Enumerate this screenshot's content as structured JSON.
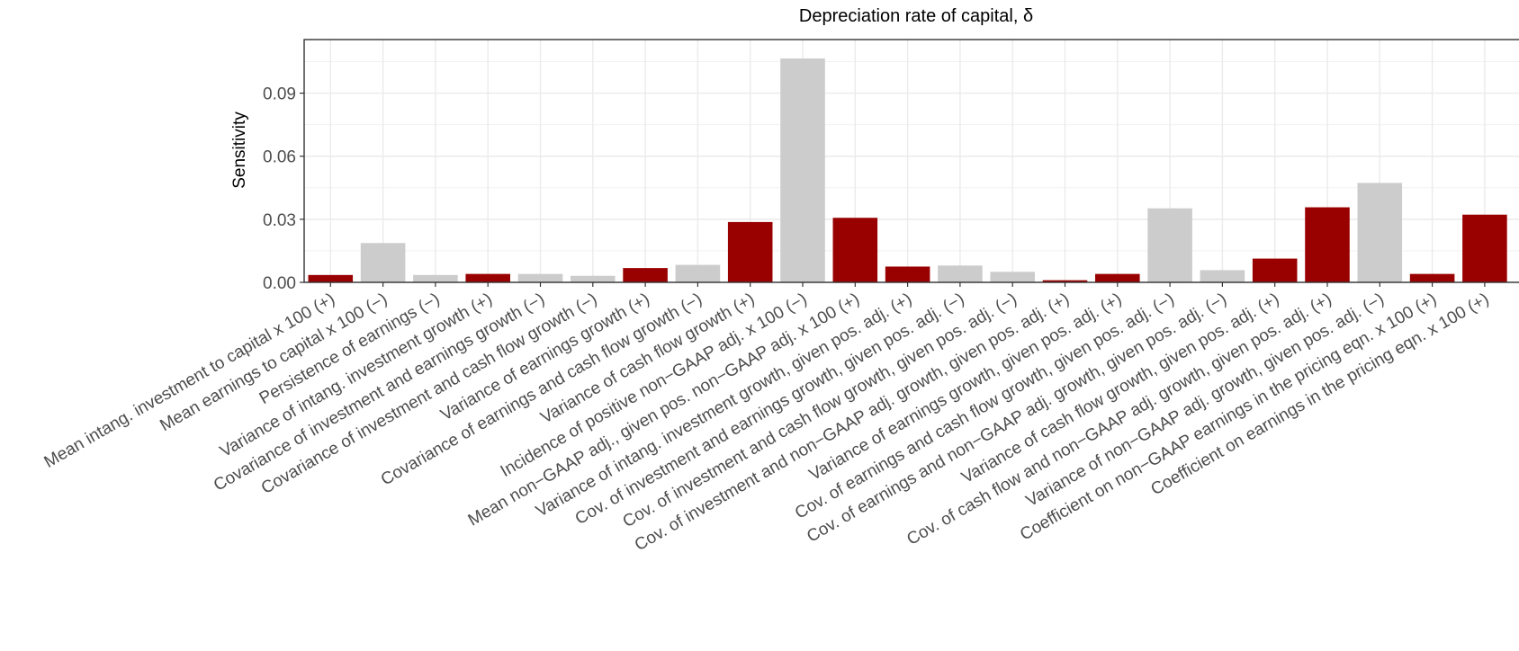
{
  "chart_data": {
    "type": "bar",
    "title": "Depreciation rate of capital, δ",
    "xlabel": "",
    "ylabel": "Sensitivity",
    "ylim": [
      0,
      0.1155
    ],
    "yticks": [
      "0.00",
      "0.03",
      "0.06",
      "0.09"
    ],
    "ytick_values": [
      0,
      0.03,
      0.06,
      0.09
    ],
    "grid": true,
    "colors": {
      "positive": "#990000",
      "negative": "#cccccc"
    },
    "categories": [
      "Mean intang. investment to capital x 100 (+)",
      "Mean earnings to capital x 100 (−)",
      "Persistence of earnings (−)",
      "Variance of intang. investment growth (+)",
      "Covariance of investment and earnings growth (−)",
      "Covariance of investment and cash flow growth (−)",
      "Variance of earnings growth (+)",
      "Covariance of earnings and cash flow growth (−)",
      "Variance of cash flow growth (+)",
      "Incidence of positive non−GAAP adj. x 100 (−)",
      "Mean non−GAAP adj., given pos. non−GAAP adj. x 100 (+)",
      "Variance of intang. investment growth, given pos. adj. (+)",
      "Cov. of investment and earnings growth, given pos. adj. (−)",
      "Cov. of investment and cash flow growth, given pos. adj. (−)",
      "Cov. of investment and non−GAAP adj. growth, given pos. adj. (+)",
      "Variance of earnings growth, given pos. adj. (+)",
      "Cov. of earnings and cash flow growth, given pos. adj. (−)",
      "Cov. of earnings and non−GAAP adj. growth, given pos. adj. (−)",
      "Variance of cash flow growth, given pos. adj. (+)",
      "Cov. of cash flow and non−GAAP adj. growth, given pos. adj. (+)",
      "Variance of non−GAAP adj. growth, given pos. adj. (−)",
      "Coefficient on non−GAAP earnings in the pricing eqn. x 100 (+)",
      "Coefficient on earnings in the pricing eqn. x 100 (+)"
    ],
    "values": [
      0.0035,
      0.0187,
      0.0035,
      0.004,
      0.004,
      0.0031,
      0.0068,
      0.0083,
      0.0287,
      0.1065,
      0.0307,
      0.0075,
      0.008,
      0.005,
      0.001,
      0.004,
      0.0352,
      0.0058,
      0.0113,
      0.0357,
      0.0473,
      0.004,
      0.0322
    ],
    "signs": [
      "+",
      "−",
      "−",
      "+",
      "−",
      "−",
      "+",
      "−",
      "+",
      "−",
      "+",
      "+",
      "−",
      "−",
      "+",
      "+",
      "−",
      "−",
      "+",
      "+",
      "−",
      "+",
      "+"
    ]
  }
}
